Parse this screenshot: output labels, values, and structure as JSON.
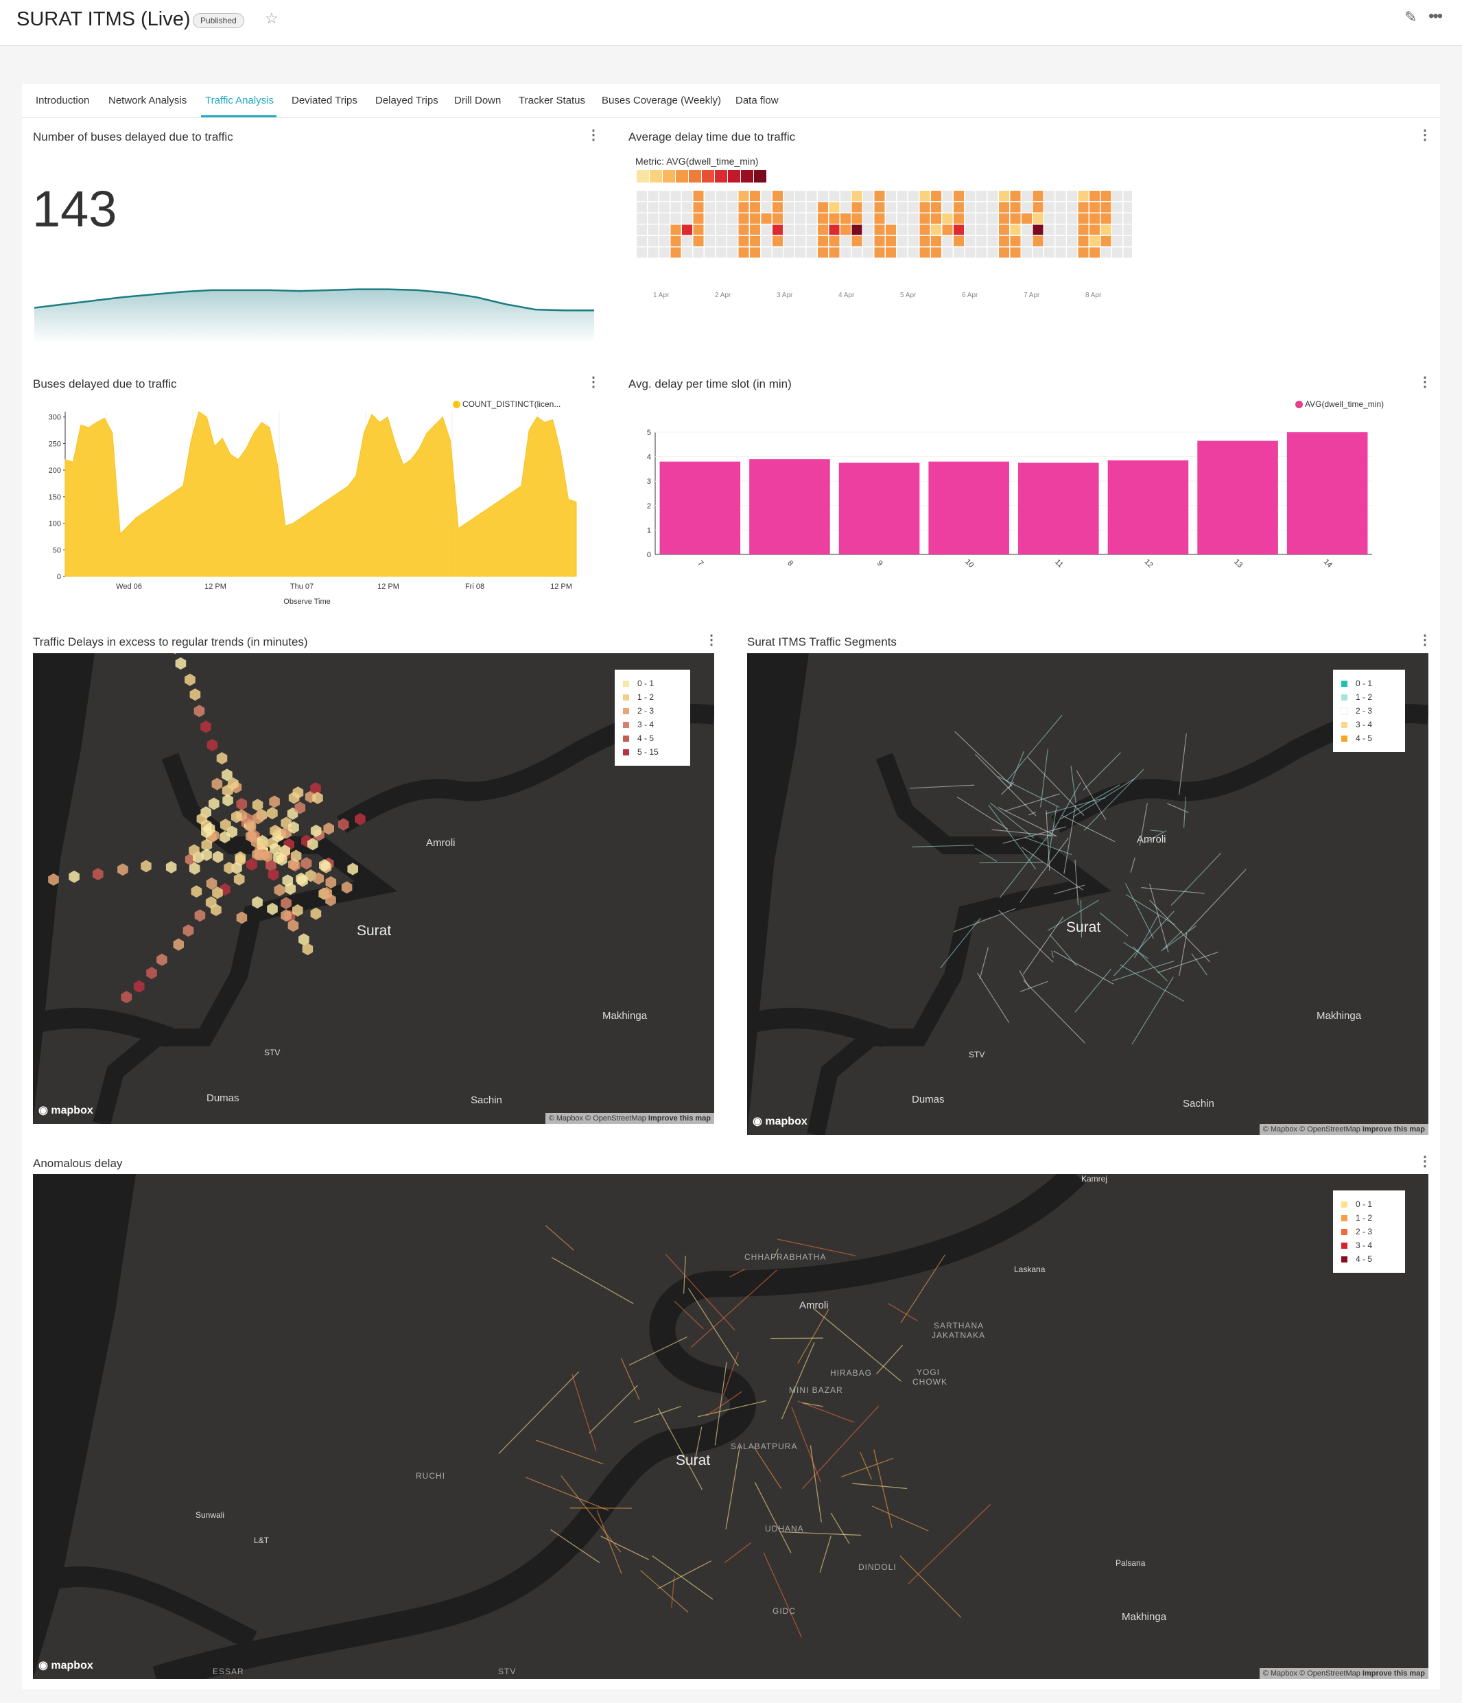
{
  "header": {
    "title": "SURAT ITMS (Live)",
    "badge": "Published"
  },
  "tabs": [
    {
      "label": "Introduction"
    },
    {
      "label": "Network Analysis"
    },
    {
      "label": "Traffic Analysis"
    },
    {
      "label": "Deviated Trips"
    },
    {
      "label": "Delayed Trips"
    },
    {
      "label": "Drill Down"
    },
    {
      "label": "Tracker Status"
    },
    {
      "label": "Buses Coverage (Weekly)"
    },
    {
      "label": "Data flow"
    }
  ],
  "cards": {
    "bignum": {
      "title": "Number of buses delayed due to traffic",
      "value": "143"
    },
    "heatmap": {
      "title": "Average delay time due to traffic",
      "metric": "Metric: AVG(dwell_time_min)"
    },
    "area": {
      "title": "Buses delayed due to traffic",
      "legend": "COUNT_DISTINCT(licen..."
    },
    "bar": {
      "title": "Avg. delay per time slot (in min)",
      "legend": "AVG(dwell_time_min)"
    },
    "map1": {
      "title": "Traffic Delays in excess to regular trends (in minutes)"
    },
    "map2": {
      "title": "Surat ITMS Traffic Segments"
    },
    "map3": {
      "title": "Anomalous delay"
    }
  },
  "map_common": {
    "attribution": "© Mapbox © OpenStreetMap",
    "improve": "Improve this map",
    "logo": "mapbox"
  },
  "map1_labels": {
    "amroli": "Amroli",
    "surat": "Surat",
    "makhinga": "Makhinga",
    "stv": "STV",
    "dumas": "Dumas",
    "sachin": "Sachin"
  },
  "map3_labels": {
    "kamrej": "Kamrej",
    "chhaprabhatha": "CHHAPRABHATHA",
    "laskana": "Laskana",
    "amroli": "Amroli",
    "sarthana": "SARTHANA",
    "jakatnaka": "JAKATNAKA",
    "hirabag": "HIRABAG",
    "yogi": "YOGI",
    "chowk": "CHOWK",
    "minibazar": "MINI BAZAR",
    "salabatpura": "SALABATPURA",
    "surat": "Surat",
    "ruchi": "RUCHI",
    "sunwali": "Sunwali",
    "lt": "L&T",
    "udhana": "UDHANA",
    "dindoli": "DINDOLI",
    "palsana": "Palsana",
    "gidc": "GIDC",
    "makhinga": "Makhinga",
    "essar": "ESSAR",
    "stv": "STV"
  },
  "map1_legend": [
    {
      "label": "0 - 1",
      "color": "#f7e7a6"
    },
    {
      "label": "1 - 2",
      "color": "#f0d08c"
    },
    {
      "label": "2 - 3",
      "color": "#e5a878"
    },
    {
      "label": "3 - 4",
      "color": "#d6826a"
    },
    {
      "label": "4 - 5",
      "color": "#c85a55"
    },
    {
      "label": "5 - 15",
      "color": "#b8323f"
    }
  ],
  "map2_legend": [
    {
      "label": "0 - 1",
      "color": "#1fc2b0"
    },
    {
      "label": "1 - 2",
      "color": "#a6e3dc"
    },
    {
      "label": "2 - 3",
      "color": "#ffffff"
    },
    {
      "label": "3 - 4",
      "color": "#fcd98a"
    },
    {
      "label": "4 - 5",
      "color": "#f6a623"
    }
  ],
  "map3_legend": [
    {
      "label": "0 - 1",
      "color": "#fde28a"
    },
    {
      "label": "1 - 2",
      "color": "#f6a04a"
    },
    {
      "label": "2 - 3",
      "color": "#ef6a3a"
    },
    {
      "label": "3 - 4",
      "color": "#d4232e"
    },
    {
      "label": "4 - 5",
      "color": "#8a0b1c"
    }
  ],
  "chart_data": [
    {
      "type": "area",
      "title": "Number of buses delayed due to traffic",
      "note": "sparkline",
      "values": [
        40,
        44,
        48,
        52,
        55,
        58,
        60,
        60,
        60,
        59,
        60,
        61,
        61,
        60,
        57,
        52,
        44,
        38,
        37,
        37
      ]
    },
    {
      "type": "heatmap",
      "title": "Average delay time due to traffic",
      "metric": "AVG(dwell_time_min)",
      "x_ticks": [
        "1 Apr",
        "2 Apr",
        "3 Apr",
        "4 Apr",
        "5 Apr",
        "6 Apr",
        "7 Apr",
        "8 Apr"
      ],
      "scale": [
        "#fbe3a0",
        "#fbd37f",
        "#f9b85d",
        "#f59a47",
        "#f07c3c",
        "#e94f34",
        "#dc2a2e",
        "#c01a2a",
        "#9a0e22",
        "#7a0a1c"
      ],
      "grid": [
        [
          0,
          0,
          0,
          0,
          0,
          3,
          0,
          0,
          0,
          2,
          3,
          0,
          3,
          0,
          0,
          0,
          0,
          0,
          0,
          1,
          0,
          3,
          0,
          0,
          0,
          1,
          3,
          0,
          3,
          0,
          0,
          0,
          1,
          3,
          0,
          3,
          0,
          0,
          0,
          1,
          3,
          3,
          0,
          0,
          0,
          1,
          3,
          3
        ],
        [
          0,
          0,
          0,
          0,
          0,
          3,
          0,
          0,
          0,
          3,
          3,
          0,
          3,
          0,
          0,
          0,
          3,
          1,
          0,
          3,
          0,
          3,
          0,
          0,
          0,
          3,
          3,
          0,
          3,
          0,
          0,
          0,
          3,
          3,
          0,
          3,
          0,
          0,
          0,
          3,
          3,
          3,
          0,
          0,
          0,
          3,
          6,
          3
        ],
        [
          0,
          0,
          0,
          0,
          0,
          3,
          0,
          0,
          0,
          3,
          3,
          3,
          3,
          0,
          0,
          0,
          3,
          3,
          3,
          3,
          0,
          3,
          0,
          0,
          0,
          3,
          3,
          1,
          3,
          0,
          0,
          0,
          3,
          3,
          3,
          1,
          0,
          0,
          0,
          3,
          3,
          3,
          0,
          0,
          0,
          3,
          1,
          0
        ],
        [
          0,
          0,
          0,
          3,
          6,
          3,
          0,
          0,
          0,
          3,
          3,
          0,
          6,
          0,
          0,
          0,
          3,
          6,
          3,
          9,
          0,
          3,
          3,
          0,
          0,
          3,
          1,
          3,
          6,
          0,
          0,
          0,
          3,
          1,
          0,
          9,
          0,
          0,
          0,
          3,
          3,
          1,
          0,
          0,
          0,
          3,
          0,
          0
        ],
        [
          0,
          0,
          0,
          3,
          0,
          3,
          0,
          0,
          0,
          3,
          3,
          0,
          3,
          0,
          0,
          0,
          3,
          3,
          0,
          3,
          0,
          3,
          3,
          0,
          0,
          3,
          3,
          0,
          3,
          0,
          0,
          0,
          3,
          3,
          0,
          3,
          0,
          0,
          0,
          3,
          1,
          3,
          0,
          0,
          0,
          3,
          0,
          0
        ],
        [
          0,
          0,
          0,
          3,
          0,
          0,
          0,
          0,
          0,
          3,
          3,
          0,
          0,
          0,
          0,
          0,
          3,
          3,
          0,
          0,
          0,
          3,
          3,
          0,
          0,
          3,
          3,
          0,
          0,
          0,
          0,
          0,
          3,
          3,
          0,
          0,
          0,
          0,
          0,
          3,
          3,
          0,
          0,
          0,
          0,
          3,
          0,
          0
        ]
      ]
    },
    {
      "type": "area",
      "title": "Buses delayed due to traffic",
      "xlabel": "Observe Time",
      "ylabel": "",
      "x_ticks": [
        "Wed 06",
        "12 PM",
        "Thu 07",
        "12 PM",
        "Fri 08",
        "12 PM"
      ],
      "y_ticks": [
        0,
        50,
        100,
        150,
        200,
        250,
        300
      ],
      "ylim": [
        0,
        310
      ],
      "series": [
        {
          "name": "COUNT_DISTINCT(licen...",
          "values": [
            220,
            215,
            285,
            280,
            290,
            298,
            270,
            80,
            95,
            110,
            120,
            130,
            140,
            150,
            160,
            170,
            255,
            310,
            300,
            245,
            260,
            230,
            220,
            240,
            270,
            290,
            280,
            210,
            95,
            100,
            110,
            120,
            130,
            140,
            150,
            160,
            170,
            190,
            270,
            305,
            290,
            300,
            250,
            210,
            220,
            240,
            270,
            285,
            300,
            255,
            90,
            100,
            110,
            120,
            130,
            140,
            150,
            160,
            170,
            275,
            300,
            290,
            295,
            235,
            145,
            140
          ]
        }
      ]
    },
    {
      "type": "bar",
      "title": "Avg. delay per time slot (in min)",
      "categories": [
        "7",
        "8",
        "9",
        "10",
        "11",
        "12",
        "13",
        "14"
      ],
      "y_ticks": [
        0,
        1,
        2,
        3,
        4,
        5
      ],
      "ylim": [
        0,
        5
      ],
      "series": [
        {
          "name": "AVG(dwell_time_min)",
          "values": [
            3.8,
            3.9,
            3.75,
            3.8,
            3.75,
            3.85,
            4.65,
            5.0
          ]
        }
      ]
    }
  ]
}
